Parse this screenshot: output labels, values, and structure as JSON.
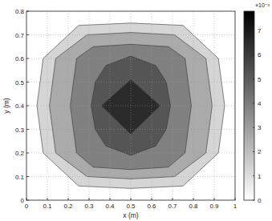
{
  "chart_data": {
    "type": "contourf",
    "xlabel": "x (m)",
    "ylabel": "y (m)",
    "xlim": [
      0,
      1
    ],
    "xticks": [
      0,
      0.1,
      0.2,
      0.3,
      0.4,
      0.5,
      0.6,
      0.7,
      0.8,
      0.9,
      1
    ],
    "ylim": [
      0,
      0.8
    ],
    "yticks": [
      0,
      0.1,
      0.2,
      0.3,
      0.4,
      0.5,
      0.6,
      0.7,
      0.8
    ],
    "grid": true,
    "colorbar": {
      "lim": [
        0,
        0.0078
      ],
      "label": "×10⁻³",
      "ticks": [
        {
          "value": 0,
          "label": "0"
        },
        {
          "value": 0.001,
          "label": "1"
        },
        {
          "value": 0.002,
          "label": "2"
        },
        {
          "value": 0.003,
          "label": "3"
        },
        {
          "value": 0.004,
          "label": "4"
        },
        {
          "value": 0.005,
          "label": "5"
        },
        {
          "value": 0.006,
          "label": "6"
        },
        {
          "value": 0.007,
          "label": "7"
        }
      ]
    },
    "contours": [
      {
        "level": 0.0013,
        "x": [
          0.25,
          0.5,
          0.75,
          0.92,
          0.95,
          0.92,
          0.75,
          0.5,
          0.25,
          0.08,
          0.05,
          0.08
        ],
        "y": [
          0.74,
          0.75,
          0.74,
          0.6,
          0.4,
          0.2,
          0.06,
          0.05,
          0.06,
          0.2,
          0.4,
          0.6
        ]
      },
      {
        "level": 0.0026,
        "x": [
          0.29,
          0.5,
          0.71,
          0.86,
          0.89,
          0.86,
          0.71,
          0.5,
          0.29,
          0.14,
          0.11,
          0.14
        ],
        "y": [
          0.7,
          0.71,
          0.7,
          0.6,
          0.4,
          0.2,
          0.1,
          0.09,
          0.1,
          0.2,
          0.4,
          0.6
        ]
      },
      {
        "level": 0.0039,
        "x": [
          0.32,
          0.5,
          0.68,
          0.76,
          0.79,
          0.76,
          0.68,
          0.5,
          0.32,
          0.24,
          0.21,
          0.24
        ],
        "y": [
          0.65,
          0.66,
          0.65,
          0.6,
          0.4,
          0.2,
          0.14,
          0.13,
          0.14,
          0.2,
          0.4,
          0.6
        ]
      },
      {
        "level": 0.0052,
        "x": [
          0.38,
          0.5,
          0.62,
          0.67,
          0.69,
          0.67,
          0.62,
          0.5,
          0.38,
          0.33,
          0.31,
          0.33
        ],
        "y": [
          0.57,
          0.61,
          0.57,
          0.5,
          0.4,
          0.3,
          0.23,
          0.19,
          0.23,
          0.3,
          0.4,
          0.5
        ]
      },
      {
        "level": 0.0065,
        "x": [
          0.5,
          0.64,
          0.5,
          0.36
        ],
        "y": [
          0.51,
          0.4,
          0.28,
          0.4
        ]
      }
    ]
  }
}
